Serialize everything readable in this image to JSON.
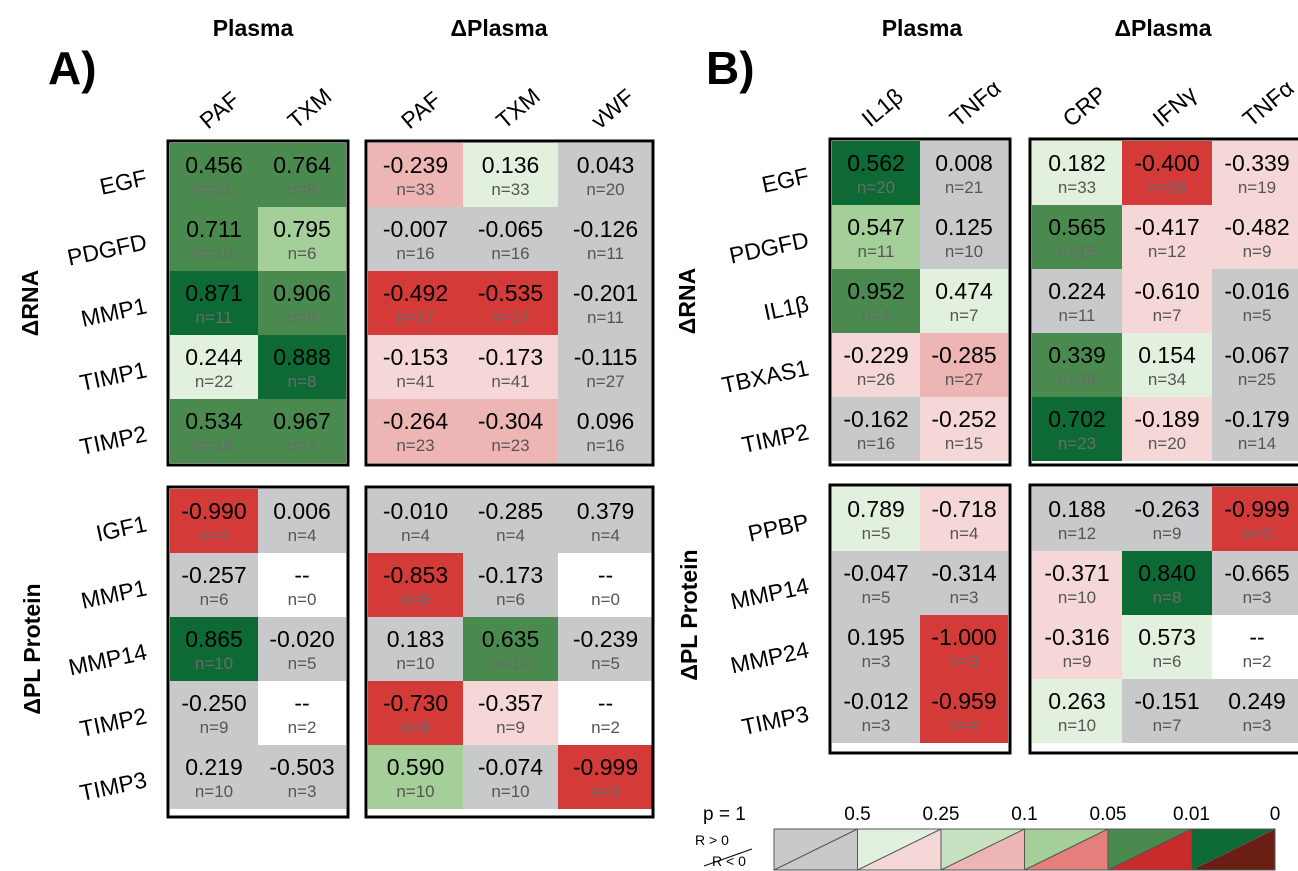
{
  "chart_data": [
    {
      "type": "heatmap",
      "panel_label": "A)",
      "group_headers": [
        "Plasma",
        "ΔPlasma"
      ],
      "col_groups": [
        [
          "PAF",
          "TXM"
        ],
        [
          "PAF",
          "TXM",
          "vWF"
        ]
      ],
      "row_groups": [
        {
          "name": "ΔRNA",
          "rows": [
            "EGF",
            "PDGFD",
            "MMP1",
            "TIMP1",
            "TIMP2"
          ]
        },
        {
          "name": "ΔPL Protein",
          "rows": [
            "IGF1",
            "MMP1",
            "MMP14",
            "TIMP2",
            "TIMP3"
          ]
        }
      ],
      "blocks": [
        {
          "cells": [
            [
              {
                "r": "0.456",
                "n": "n=21",
                "c": "g4"
              },
              {
                "r": "0.764",
                "n": "n=8",
                "c": "g4"
              }
            ],
            [
              {
                "r": "0.711",
                "n": "n=10",
                "c": "g4"
              },
              {
                "r": "0.795",
                "n": "n=6",
                "c": "g2"
              }
            ],
            [
              {
                "r": "0.871",
                "n": "n=11",
                "c": "g5"
              },
              {
                "r": "0.906",
                "n": "n=6",
                "c": "g4"
              }
            ],
            [
              {
                "r": "0.244",
                "n": "n=22",
                "c": "g1"
              },
              {
                "r": "0.888",
                "n": "n=8",
                "c": "g5"
              }
            ],
            [
              {
                "r": "0.534",
                "n": "n=14",
                "c": "g4"
              },
              {
                "r": "0.967",
                "n": "n=7",
                "c": "g4"
              }
            ]
          ]
        },
        {
          "cells": [
            [
              {
                "r": "-0.239",
                "n": "n=33",
                "c": "r2"
              },
              {
                "r": "0.136",
                "n": "n=33",
                "c": "g1"
              },
              {
                "r": "0.043",
                "n": "n=20",
                "c": "gray"
              }
            ],
            [
              {
                "r": "-0.007",
                "n": "n=16",
                "c": "gray"
              },
              {
                "r": "-0.065",
                "n": "n=16",
                "c": "gray"
              },
              {
                "r": "-0.126",
                "n": "n=11",
                "c": "gray"
              }
            ],
            [
              {
                "r": "-0.492",
                "n": "n=17",
                "c": "r4"
              },
              {
                "r": "-0.535",
                "n": "n=17",
                "c": "r4"
              },
              {
                "r": "-0.201",
                "n": "n=11",
                "c": "gray"
              }
            ],
            [
              {
                "r": "-0.153",
                "n": "n=41",
                "c": "r1"
              },
              {
                "r": "-0.173",
                "n": "n=41",
                "c": "r1"
              },
              {
                "r": "-0.115",
                "n": "n=27",
                "c": "gray"
              }
            ],
            [
              {
                "r": "-0.264",
                "n": "n=23",
                "c": "r2"
              },
              {
                "r": "-0.304",
                "n": "n=23",
                "c": "r2"
              },
              {
                "r": "0.096",
                "n": "n=16",
                "c": "gray"
              }
            ]
          ]
        },
        {
          "cells": [
            [
              {
                "r": "-0.990",
                "n": "n=4",
                "c": "r4"
              },
              {
                "r": "0.006",
                "n": "n=4",
                "c": "gray"
              }
            ],
            [
              {
                "r": "-0.257",
                "n": "n=6",
                "c": "gray"
              },
              {
                "r": "--",
                "n": "n=0",
                "c": "white"
              }
            ],
            [
              {
                "r": "0.865",
                "n": "n=10",
                "c": "g5"
              },
              {
                "r": "-0.020",
                "n": "n=5",
                "c": "gray"
              }
            ],
            [
              {
                "r": "-0.250",
                "n": "n=9",
                "c": "gray"
              },
              {
                "r": "--",
                "n": "n=2",
                "c": "white"
              }
            ],
            [
              {
                "r": "0.219",
                "n": "n=10",
                "c": "gray"
              },
              {
                "r": "-0.503",
                "n": "n=3",
                "c": "gray"
              }
            ]
          ]
        },
        {
          "cells": [
            [
              {
                "r": "-0.010",
                "n": "n=4",
                "c": "gray"
              },
              {
                "r": "-0.285",
                "n": "n=4",
                "c": "gray"
              },
              {
                "r": "0.379",
                "n": "n=4",
                "c": "gray"
              }
            ],
            [
              {
                "r": "-0.853",
                "n": "n=6",
                "c": "r4"
              },
              {
                "r": "-0.173",
                "n": "n=6",
                "c": "gray"
              },
              {
                "r": "--",
                "n": "n=0",
                "c": "white"
              }
            ],
            [
              {
                "r": "0.183",
                "n": "n=10",
                "c": "gray"
              },
              {
                "r": "0.635",
                "n": "n=10",
                "c": "g4"
              },
              {
                "r": "-0.239",
                "n": "n=5",
                "c": "gray"
              }
            ],
            [
              {
                "r": "-0.730",
                "n": "n=9",
                "c": "r4"
              },
              {
                "r": "-0.357",
                "n": "n=9",
                "c": "r1"
              },
              {
                "r": "--",
                "n": "n=2",
                "c": "white"
              }
            ],
            [
              {
                "r": "0.590",
                "n": "n=10",
                "c": "g2"
              },
              {
                "r": "-0.074",
                "n": "n=10",
                "c": "gray"
              },
              {
                "r": "-0.999",
                "n": "n=3",
                "c": "r4"
              }
            ]
          ]
        }
      ]
    },
    {
      "type": "heatmap",
      "panel_label": "B)",
      "group_headers": [
        "Plasma",
        "ΔPlasma"
      ],
      "col_groups": [
        [
          "IL1β",
          "TNFα"
        ],
        [
          "CRP",
          "IFNγ",
          "TNFα"
        ]
      ],
      "row_groups": [
        {
          "name": "ΔRNA",
          "rows": [
            "EGF",
            "PDGFD",
            "IL1β",
            "TBXAS1",
            "TIMP2"
          ]
        },
        {
          "name": "ΔPL Protein",
          "rows": [
            "PPBP",
            "MMP14",
            "MMP24",
            "TIMP3"
          ]
        }
      ],
      "blocks": [
        {
          "cells": [
            [
              {
                "r": "0.562",
                "n": "n=20",
                "c": "g5"
              },
              {
                "r": "0.008",
                "n": "n=21",
                "c": "gray"
              }
            ],
            [
              {
                "r": "0.547",
                "n": "n=11",
                "c": "g2"
              },
              {
                "r": "0.125",
                "n": "n=10",
                "c": "gray"
              }
            ],
            [
              {
                "r": "0.952",
                "n": "n=4",
                "c": "g4"
              },
              {
                "r": "0.474",
                "n": "n=7",
                "c": "g1"
              }
            ],
            [
              {
                "r": "-0.229",
                "n": "n=26",
                "c": "r1"
              },
              {
                "r": "-0.285",
                "n": "n=27",
                "c": "r2"
              }
            ],
            [
              {
                "r": "-0.162",
                "n": "n=16",
                "c": "gray"
              },
              {
                "r": "-0.252",
                "n": "n=15",
                "c": "r1"
              }
            ]
          ]
        },
        {
          "cells": [
            [
              {
                "r": "0.182",
                "n": "n=33",
                "c": "g1"
              },
              {
                "r": "-0.400",
                "n": "n=28",
                "c": "r4"
              },
              {
                "r": "-0.339",
                "n": "n=19",
                "c": "r1"
              }
            ],
            [
              {
                "r": "0.565",
                "n": "n=15",
                "c": "g4"
              },
              {
                "r": "-0.417",
                "n": "n=12",
                "c": "r1"
              },
              {
                "r": "-0.482",
                "n": "n=9",
                "c": "r1"
              }
            ],
            [
              {
                "r": "0.224",
                "n": "n=11",
                "c": "gray"
              },
              {
                "r": "-0.610",
                "n": "n=7",
                "c": "r1"
              },
              {
                "r": "-0.016",
                "n": "n=5",
                "c": "gray"
              }
            ],
            [
              {
                "r": "0.339",
                "n": "n=39",
                "c": "g4"
              },
              {
                "r": "0.154",
                "n": "n=34",
                "c": "g1"
              },
              {
                "r": "-0.067",
                "n": "n=25",
                "c": "gray"
              }
            ],
            [
              {
                "r": "0.702",
                "n": "n=23",
                "c": "g5"
              },
              {
                "r": "-0.189",
                "n": "n=20",
                "c": "r1"
              },
              {
                "r": "-0.179",
                "n": "n=14",
                "c": "gray"
              }
            ]
          ]
        },
        {
          "cells": [
            [
              {
                "r": "0.789",
                "n": "n=5",
                "c": "g1"
              },
              {
                "r": "-0.718",
                "n": "n=4",
                "c": "r1"
              }
            ],
            [
              {
                "r": "-0.047",
                "n": "n=5",
                "c": "gray"
              },
              {
                "r": "-0.314",
                "n": "n=3",
                "c": "gray"
              }
            ],
            [
              {
                "r": "0.195",
                "n": "n=3",
                "c": "gray"
              },
              {
                "r": "-1.000",
                "n": "n=3",
                "c": "r4"
              }
            ],
            [
              {
                "r": "-0.012",
                "n": "n=3",
                "c": "gray"
              },
              {
                "r": "-0.959",
                "n": "n=4",
                "c": "r4"
              }
            ]
          ]
        },
        {
          "cells": [
            [
              {
                "r": "0.188",
                "n": "n=12",
                "c": "gray"
              },
              {
                "r": "-0.263",
                "n": "n=9",
                "c": "gray"
              },
              {
                "r": "-0.999",
                "n": "n=3",
                "c": "r4"
              }
            ],
            [
              {
                "r": "-0.371",
                "n": "n=10",
                "c": "r1"
              },
              {
                "r": "0.840",
                "n": "n=8",
                "c": "g5"
              },
              {
                "r": "-0.665",
                "n": "n=3",
                "c": "gray"
              }
            ],
            [
              {
                "r": "-0.316",
                "n": "n=9",
                "c": "r1"
              },
              {
                "r": "0.573",
                "n": "n=6",
                "c": "g1"
              },
              {
                "r": "--",
                "n": "n=2",
                "c": "white"
              }
            ],
            [
              {
                "r": "0.263",
                "n": "n=10",
                "c": "g1"
              },
              {
                "r": "-0.151",
                "n": "n=7",
                "c": "gray"
              },
              {
                "r": "0.249",
                "n": "n=3",
                "c": "gray"
              }
            ]
          ]
        }
      ]
    }
  ],
  "legend": {
    "p_label": "p = 1",
    "ticks": [
      "0.5",
      "0.25",
      "0.1",
      "0.05",
      "0.01",
      "0"
    ],
    "pos_label": "R > 0",
    "neg_label": "R < 0",
    "swatches": [
      {
        "pos": "#c8c9cb",
        "neg": "#c8c9cb"
      },
      {
        "pos": "#e2f1de",
        "neg": "#f6d7d7"
      },
      {
        "pos": "#c6e2c0",
        "neg": "#eeb5b5"
      },
      {
        "pos": "#a4cf98",
        "neg": "#e57f7b"
      },
      {
        "pos": "#4a8a4f",
        "neg": "#c92a2a"
      },
      {
        "pos": "#0d6a34",
        "neg": "#6b1e14"
      }
    ]
  },
  "colors": {
    "gray": "#c8c9cb",
    "white": "#ffffff",
    "g1": "#e2f1de",
    "g2": "#a4cf98",
    "g4": "#4a8a4f",
    "g5": "#0d6a34",
    "r1": "#f6d7d7",
    "r2": "#eeb5b5",
    "r4": "#d33a38"
  }
}
